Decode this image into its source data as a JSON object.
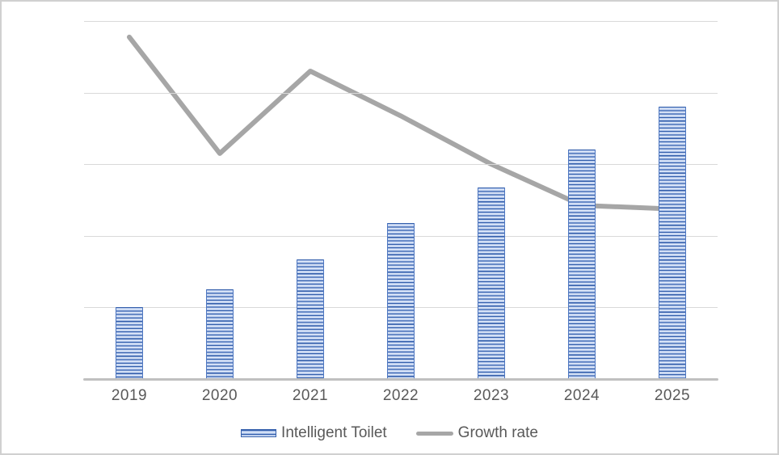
{
  "chart_data": {
    "type": "combo",
    "title": "",
    "xlabel": "",
    "ylabel": "",
    "categories": [
      "2019",
      "2020",
      "2021",
      "2022",
      "2023",
      "2024",
      "2025"
    ],
    "series": [
      {
        "name": "Intelligent Toilet",
        "type": "bar",
        "pattern": "horizontal-stripes",
        "color": "#4472c4",
        "values": [
          20,
          25,
          33.5,
          43.5,
          53.5,
          64,
          76
        ]
      },
      {
        "name": "Growth rate",
        "type": "line",
        "color": "#a6a6a6",
        "values": [
          95.5,
          63,
          86,
          73.5,
          60,
          48.5,
          47.5
        ]
      }
    ],
    "ylim": [
      0,
      100
    ],
    "gridline_values": [
      20,
      40,
      60,
      80,
      100
    ],
    "y_axis_labels_shown": false,
    "grid": true,
    "legend_position": "bottom"
  },
  "colors": {
    "bar_dark_stripe": "#3560ac",
    "bar_mid_stripe": "#8fabdf",
    "bar_light_stripe": "#dde7f8",
    "line": "#a6a6a6",
    "gridline": "#d9d9d9",
    "axis": "#c0c0c0",
    "text": "#595959",
    "card_border": "#d0d0d0",
    "background": "#ffffff"
  }
}
